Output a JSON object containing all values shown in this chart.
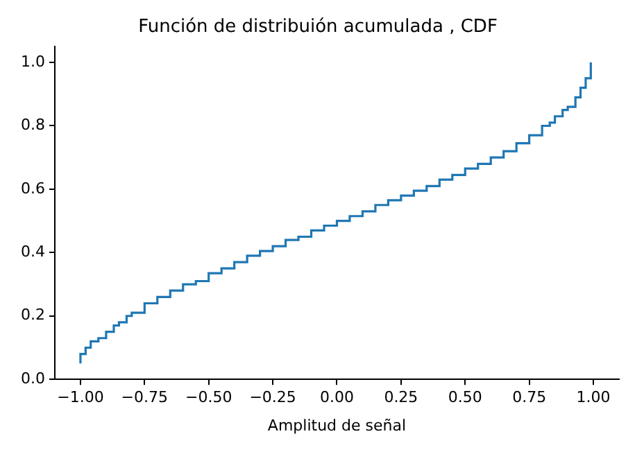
{
  "chart_data": {
    "type": "step",
    "title": "Función de distribuión acumulada , CDF",
    "xlabel": "Amplitud de señal",
    "x": [
      -1.0,
      -1.0,
      -0.98,
      -0.96,
      -0.93,
      -0.9,
      -0.87,
      -0.85,
      -0.82,
      -0.8,
      -0.75,
      -0.7,
      -0.65,
      -0.6,
      -0.55,
      -0.5,
      -0.45,
      -0.4,
      -0.35,
      -0.3,
      -0.25,
      -0.2,
      -0.15,
      -0.1,
      -0.05,
      0.0,
      0.05,
      0.1,
      0.15,
      0.2,
      0.25,
      0.3,
      0.35,
      0.4,
      0.45,
      0.5,
      0.55,
      0.6,
      0.65,
      0.7,
      0.75,
      0.8,
      0.83,
      0.85,
      0.88,
      0.9,
      0.93,
      0.95,
      0.97,
      0.99,
      0.99
    ],
    "series": [
      {
        "color": "#1f77b4",
        "values": [
          0.05,
          0.08,
          0.1,
          0.12,
          0.13,
          0.15,
          0.17,
          0.18,
          0.2,
          0.21,
          0.24,
          0.26,
          0.28,
          0.3,
          0.31,
          0.335,
          0.35,
          0.37,
          0.39,
          0.405,
          0.42,
          0.44,
          0.45,
          0.47,
          0.485,
          0.5,
          0.515,
          0.53,
          0.55,
          0.565,
          0.58,
          0.595,
          0.61,
          0.63,
          0.645,
          0.665,
          0.68,
          0.7,
          0.72,
          0.745,
          0.77,
          0.8,
          0.81,
          0.83,
          0.85,
          0.86,
          0.89,
          0.92,
          0.95,
          0.97,
          1.0
        ]
      }
    ],
    "xlim": [
      -1.1,
      1.1
    ],
    "ylim": [
      0,
      1.05
    ],
    "xticks": [
      {
        "value": -1,
        "label": "−1.00"
      },
      {
        "value": -0.75,
        "label": "−0.75"
      },
      {
        "value": -0.5,
        "label": "−0.50"
      },
      {
        "value": -0.25,
        "label": "−0.25"
      },
      {
        "value": 0,
        "label": "0.00"
      },
      {
        "value": 0.25,
        "label": "0.25"
      },
      {
        "value": 0.5,
        "label": "0.50"
      },
      {
        "value": 0.75,
        "label": "0.75"
      },
      {
        "value": 1,
        "label": "1.00"
      }
    ],
    "yticks": [
      {
        "value": 0,
        "label": "0.0"
      },
      {
        "value": 0.2,
        "label": "0.2"
      },
      {
        "value": 0.4,
        "label": "0.4"
      },
      {
        "value": 0.6,
        "label": "0.6"
      },
      {
        "value": 0.8,
        "label": "0.8"
      },
      {
        "value": 1,
        "label": "1.0"
      }
    ],
    "grid": false,
    "legend": false
  }
}
